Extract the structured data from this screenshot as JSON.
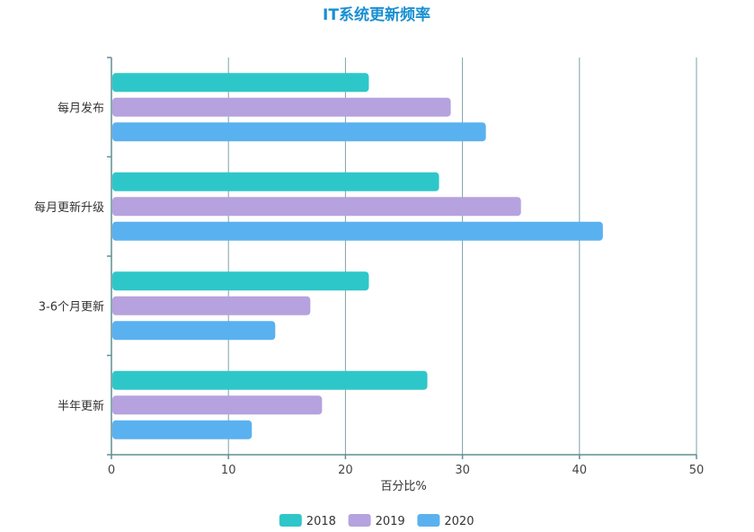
{
  "chart_data": {
    "type": "bar",
    "orientation": "horizontal",
    "title": "IT系统更新频率",
    "categories": [
      "每月发布",
      "每月更新升级",
      "3-6个月更新",
      "半年更新"
    ],
    "series": [
      {
        "name": "2018",
        "color": "#2ec7c9",
        "values": [
          22,
          28,
          22,
          27
        ]
      },
      {
        "name": "2019",
        "color": "#b6a2de",
        "values": [
          29,
          35,
          17,
          18
        ]
      },
      {
        "name": "2020",
        "color": "#5ab1ef",
        "values": [
          32,
          42,
          14,
          12
        ]
      }
    ],
    "xlabel": "百分比%",
    "ylabel": "",
    "xlim": [
      0,
      50
    ],
    "xticks": [
      0,
      10,
      20,
      30,
      40,
      50
    ],
    "grid": true,
    "legend_position": "bottom-center"
  }
}
